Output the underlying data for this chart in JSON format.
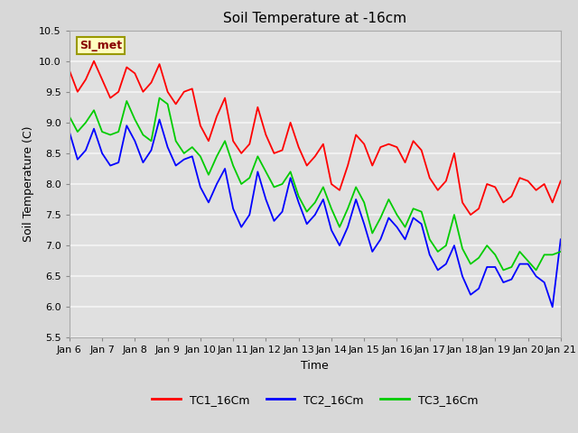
{
  "title": "Soil Temperature at -16cm",
  "xlabel": "Time",
  "ylabel": "Soil Temperature (C)",
  "ylim": [
    5.5,
    10.5
  ],
  "xlim": [
    0,
    15
  ],
  "fig_bg_color": "#d8d8d8",
  "plot_bg_color": "#e0e0e0",
  "grid_color": "#f5f5f5",
  "tick_labels": [
    "Jan 6",
    "Jan 7",
    "Jan 8",
    "Jan 9",
    "Jan 10",
    "Jan 11",
    "Jan 12",
    "Jan 13",
    "Jan 14",
    "Jan 15",
    "Jan 16",
    "Jan 17",
    "Jan 18",
    "Jan 19",
    "Jan 20",
    "Jan 21"
  ],
  "series": {
    "TC1_16Cm": {
      "color": "#ff0000",
      "x": [
        0.0,
        0.25,
        0.5,
        0.75,
        1.0,
        1.25,
        1.5,
        1.75,
        2.0,
        2.25,
        2.5,
        2.75,
        3.0,
        3.25,
        3.5,
        3.75,
        4.0,
        4.25,
        4.5,
        4.75,
        5.0,
        5.25,
        5.5,
        5.75,
        6.0,
        6.25,
        6.5,
        6.75,
        7.0,
        7.25,
        7.5,
        7.75,
        8.0,
        8.25,
        8.5,
        8.75,
        9.0,
        9.25,
        9.5,
        9.75,
        10.0,
        10.25,
        10.5,
        10.75,
        11.0,
        11.25,
        11.5,
        11.75,
        12.0,
        12.25,
        12.5,
        12.75,
        13.0,
        13.25,
        13.5,
        13.75,
        14.0,
        14.25,
        14.5,
        14.75,
        15.0
      ],
      "y": [
        9.85,
        9.5,
        9.7,
        10.0,
        9.7,
        9.4,
        9.5,
        9.9,
        9.8,
        9.5,
        9.65,
        9.95,
        9.5,
        9.3,
        9.5,
        9.55,
        8.95,
        8.7,
        9.1,
        9.4,
        8.7,
        8.5,
        8.65,
        9.25,
        8.8,
        8.5,
        8.55,
        9.0,
        8.6,
        8.3,
        8.45,
        8.65,
        8.0,
        7.9,
        8.3,
        8.8,
        8.65,
        8.3,
        8.6,
        8.65,
        8.6,
        8.35,
        8.7,
        8.55,
        8.1,
        7.9,
        8.05,
        8.5,
        7.7,
        7.5,
        7.6,
        8.0,
        7.95,
        7.7,
        7.8,
        8.1,
        8.05,
        7.9,
        8.0,
        7.7,
        8.05
      ]
    },
    "TC2_16Cm": {
      "color": "#0000ff",
      "x": [
        0.0,
        0.25,
        0.5,
        0.75,
        1.0,
        1.25,
        1.5,
        1.75,
        2.0,
        2.25,
        2.5,
        2.75,
        3.0,
        3.25,
        3.5,
        3.75,
        4.0,
        4.25,
        4.5,
        4.75,
        5.0,
        5.25,
        5.5,
        5.75,
        6.0,
        6.25,
        6.5,
        6.75,
        7.0,
        7.25,
        7.5,
        7.75,
        8.0,
        8.25,
        8.5,
        8.75,
        9.0,
        9.25,
        9.5,
        9.75,
        10.0,
        10.25,
        10.5,
        10.75,
        11.0,
        11.25,
        11.5,
        11.75,
        12.0,
        12.25,
        12.5,
        12.75,
        13.0,
        13.25,
        13.5,
        13.75,
        14.0,
        14.25,
        14.5,
        14.75,
        15.0
      ],
      "y": [
        8.85,
        8.4,
        8.55,
        8.9,
        8.5,
        8.3,
        8.35,
        8.95,
        8.7,
        8.35,
        8.55,
        9.05,
        8.6,
        8.3,
        8.4,
        8.45,
        7.95,
        7.7,
        8.0,
        8.25,
        7.6,
        7.3,
        7.5,
        8.2,
        7.75,
        7.4,
        7.55,
        8.1,
        7.7,
        7.35,
        7.5,
        7.75,
        7.25,
        7.0,
        7.3,
        7.75,
        7.35,
        6.9,
        7.1,
        7.45,
        7.3,
        7.1,
        7.45,
        7.35,
        6.85,
        6.6,
        6.7,
        7.0,
        6.5,
        6.2,
        6.3,
        6.65,
        6.65,
        6.4,
        6.45,
        6.7,
        6.7,
        6.5,
        6.4,
        6.0,
        7.1
      ]
    },
    "TC3_16Cm": {
      "color": "#00cc00",
      "x": [
        0.0,
        0.25,
        0.5,
        0.75,
        1.0,
        1.25,
        1.5,
        1.75,
        2.0,
        2.25,
        2.5,
        2.75,
        3.0,
        3.25,
        3.5,
        3.75,
        4.0,
        4.25,
        4.5,
        4.75,
        5.0,
        5.25,
        5.5,
        5.75,
        6.0,
        6.25,
        6.5,
        6.75,
        7.0,
        7.25,
        7.5,
        7.75,
        8.0,
        8.25,
        8.5,
        8.75,
        9.0,
        9.25,
        9.5,
        9.75,
        10.0,
        10.25,
        10.5,
        10.75,
        11.0,
        11.25,
        11.5,
        11.75,
        12.0,
        12.25,
        12.5,
        12.75,
        13.0,
        13.25,
        13.5,
        13.75,
        14.0,
        14.25,
        14.5,
        14.75,
        15.0
      ],
      "y": [
        9.1,
        8.85,
        9.0,
        9.2,
        8.85,
        8.8,
        8.85,
        9.35,
        9.05,
        8.8,
        8.7,
        9.4,
        9.3,
        8.7,
        8.5,
        8.6,
        8.45,
        8.15,
        8.45,
        8.7,
        8.3,
        8.0,
        8.1,
        8.45,
        8.2,
        7.95,
        8.0,
        8.2,
        7.8,
        7.55,
        7.7,
        7.95,
        7.6,
        7.3,
        7.6,
        7.95,
        7.7,
        7.2,
        7.45,
        7.75,
        7.5,
        7.3,
        7.6,
        7.55,
        7.1,
        6.9,
        7.0,
        7.5,
        6.95,
        6.7,
        6.8,
        7.0,
        6.85,
        6.6,
        6.65,
        6.9,
        6.75,
        6.6,
        6.85,
        6.85,
        6.9
      ]
    }
  },
  "annotation_box": {
    "text": "SI_met",
    "bg_color": "#ffffc0",
    "border_color": "#999900",
    "text_color": "#880000",
    "fontsize": 9,
    "fontweight": "bold"
  },
  "yticks": [
    5.5,
    6.0,
    6.5,
    7.0,
    7.5,
    8.0,
    8.5,
    9.0,
    9.5,
    10.0,
    10.5
  ],
  "title_fontsize": 11,
  "axis_label_fontsize": 9,
  "tick_fontsize": 8,
  "legend_fontsize": 9
}
